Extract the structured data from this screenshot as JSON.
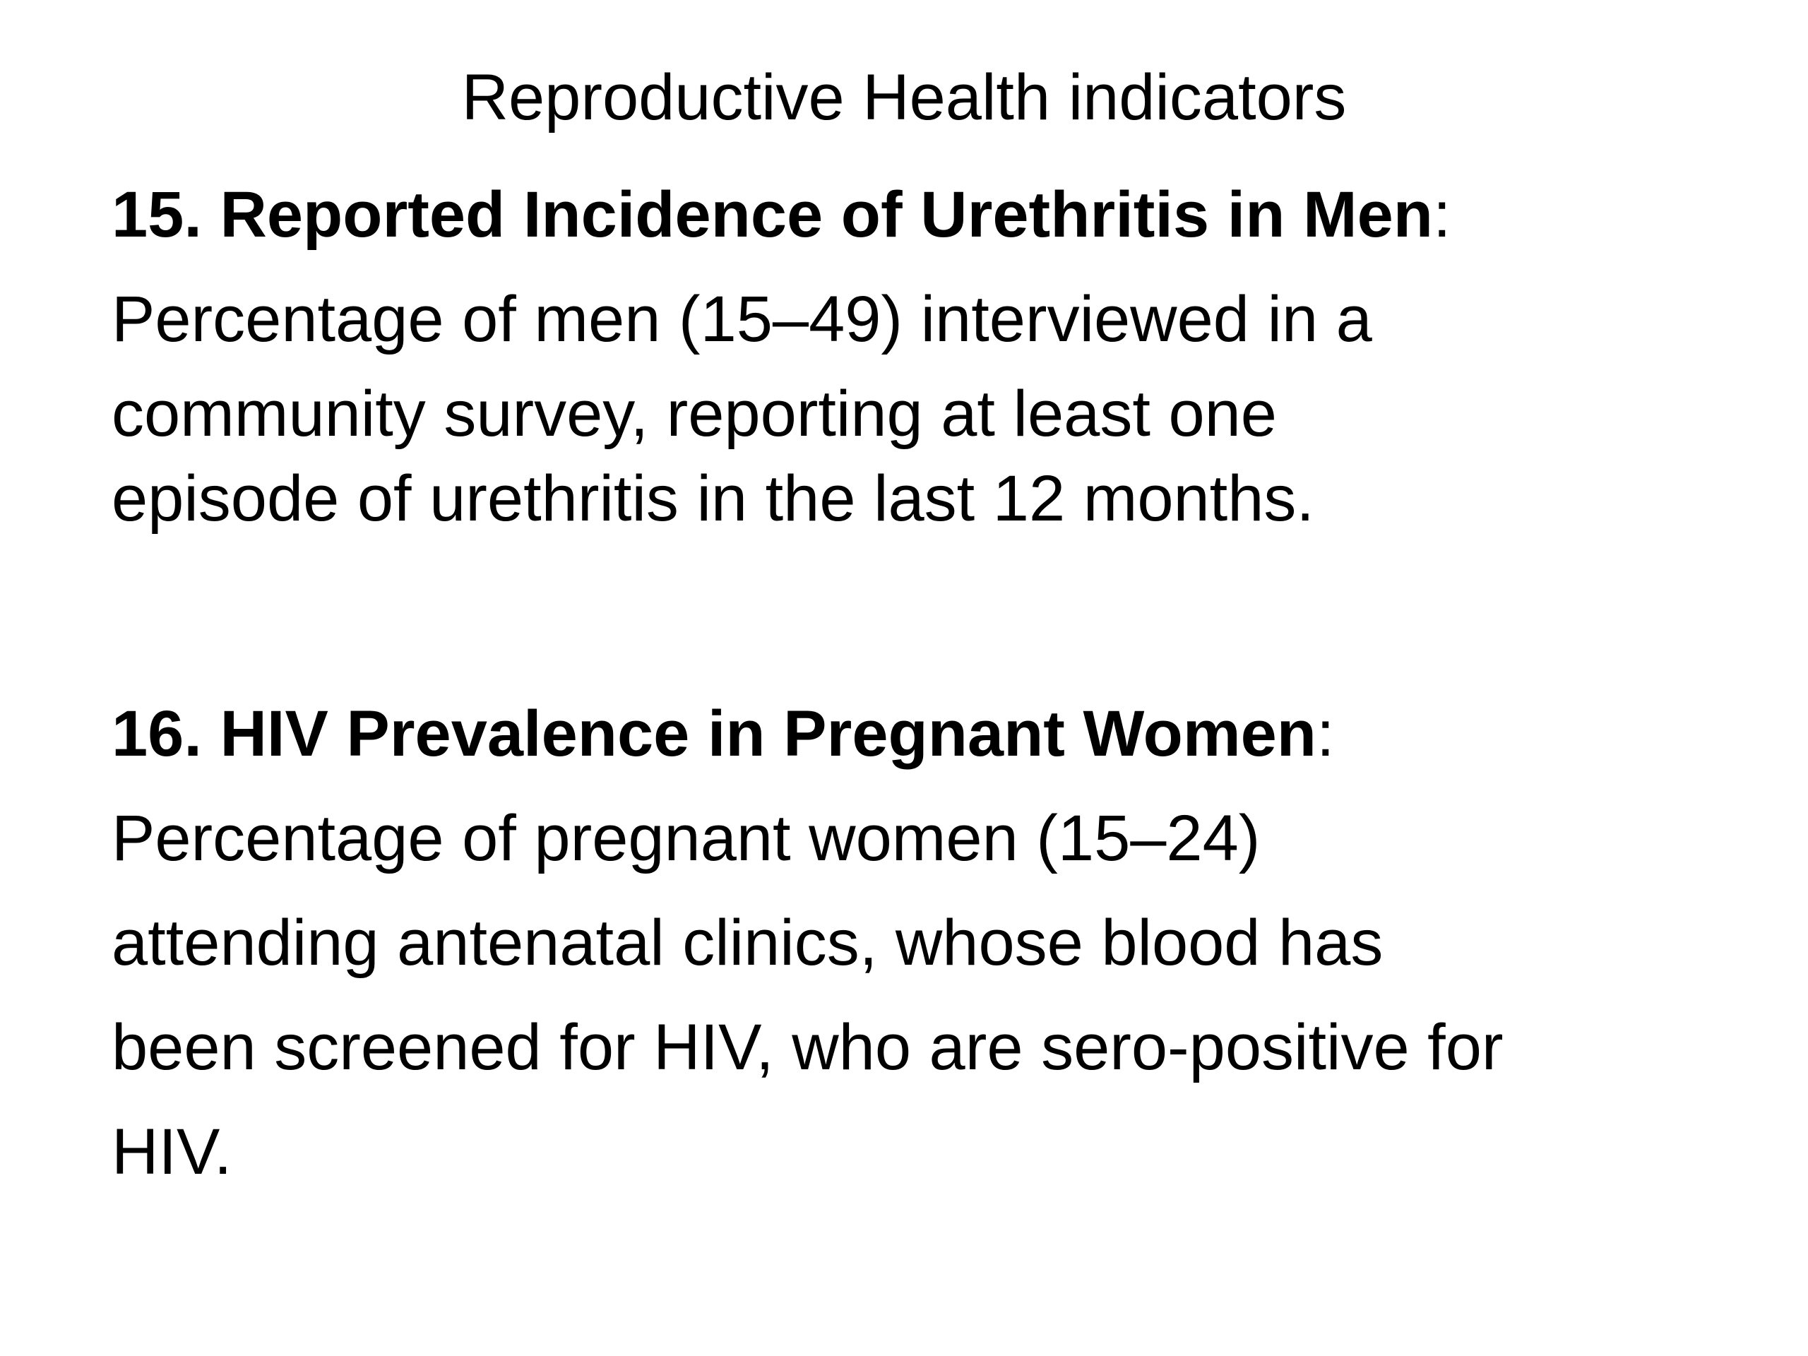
{
  "slide": {
    "title": "Reproductive Health indicators",
    "indicators": [
      {
        "heading": "15. Reported Incidence of Urethritis in Men",
        "heading_suffix": ":",
        "lines": [
          "Percentage of men (15–49) interviewed in a",
          "community survey, reporting at least one",
          "episode of urethritis in the last 12 months."
        ]
      },
      {
        "heading": "16. HIV Prevalence in Pregnant Women",
        "heading_suffix": ":",
        "lines": [
          "Percentage of pregnant women (15–24)",
          "attending antenatal clinics, whose blood has",
          "been screened for HIV, who are sero-positive for",
          "HIV."
        ]
      }
    ]
  }
}
